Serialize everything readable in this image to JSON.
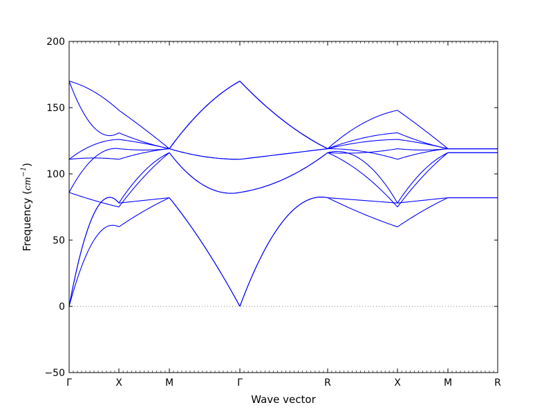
{
  "chart_data": {
    "type": "line",
    "title": "",
    "xlabel": "Wave vector",
    "ylabel": "Frequency",
    "ylabel_unit": "cm",
    "ylabel_unit_exponent": "−1",
    "ylim": [
      -50,
      200
    ],
    "yticks": [
      -50,
      0,
      50,
      100,
      150,
      200
    ],
    "ytick_labels": [
      "−50",
      "0",
      "50",
      "100",
      "150",
      "200"
    ],
    "high_symmetry_points": [
      "Γ",
      "X",
      "M",
      "Γ",
      "R",
      "X",
      "M",
      "R"
    ],
    "zero_line": true,
    "line_color": "#0000ff",
    "zero_line_color": "#808080",
    "segments": [
      {
        "from": "Γ",
        "to": "X",
        "bands": [
          [
            0,
            50,
            60
          ],
          [
            0,
            70,
            78
          ],
          [
            0,
            70,
            78
          ],
          [
            86,
            80,
            75
          ],
          [
            86,
            112,
            119
          ],
          [
            111,
            112,
            111
          ],
          [
            111,
            122,
            126
          ],
          [
            170,
            135,
            131
          ],
          [
            170,
            162,
            148
          ]
        ]
      },
      {
        "from": "X",
        "to": "M",
        "bands": [
          [
            60,
            72,
            82
          ],
          [
            78,
            80,
            82
          ],
          [
            75,
            98,
            116
          ],
          [
            78,
            102,
            116
          ],
          [
            119,
            118,
            119
          ],
          [
            111,
            116,
            119
          ],
          [
            126,
            123,
            119
          ],
          [
            131,
            124,
            119
          ],
          [
            148,
            134,
            119
          ]
        ]
      },
      {
        "from": "M",
        "to": "Γ",
        "bands": [
          [
            82,
            45,
            0
          ],
          [
            82,
            45,
            0
          ],
          [
            116,
            91,
            86
          ],
          [
            116,
            91,
            86
          ],
          [
            119,
            113,
            111
          ],
          [
            119,
            113,
            111
          ],
          [
            119,
            150,
            170
          ],
          [
            119,
            150,
            170
          ],
          [
            119,
            150,
            170
          ]
        ]
      },
      {
        "from": "Γ",
        "to": "R",
        "bands": [
          [
            0,
            65,
            82
          ],
          [
            0,
            65,
            82
          ],
          [
            86,
            96,
            116
          ],
          [
            86,
            96,
            116
          ],
          [
            111,
            115,
            119
          ],
          [
            111,
            115,
            119
          ],
          [
            170,
            140,
            119
          ],
          [
            170,
            140,
            119
          ],
          [
            170,
            140,
            119
          ]
        ]
      },
      {
        "from": "R",
        "to": "X",
        "bands": [
          [
            82,
            70,
            60
          ],
          [
            82,
            80,
            78
          ],
          [
            116,
            100,
            75
          ],
          [
            116,
            110,
            78
          ],
          [
            116,
            116,
            119
          ],
          [
            119,
            117,
            111
          ],
          [
            119,
            124,
            126
          ],
          [
            119,
            127,
            131
          ],
          [
            119,
            138,
            148
          ]
        ]
      },
      {
        "from": "X",
        "to": "M",
        "bands": [
          [
            60,
            72,
            82
          ],
          [
            78,
            80,
            82
          ],
          [
            75,
            98,
            116
          ],
          [
            78,
            102,
            116
          ],
          [
            119,
            118,
            119
          ],
          [
            111,
            116,
            119
          ],
          [
            126,
            123,
            119
          ],
          [
            131,
            124,
            119
          ],
          [
            148,
            134,
            119
          ]
        ]
      },
      {
        "from": "M",
        "to": "R",
        "bands": [
          [
            82,
            82,
            82
          ],
          [
            82,
            82,
            82
          ],
          [
            116,
            116,
            116
          ],
          [
            116,
            116,
            116
          ],
          [
            119,
            119,
            119
          ],
          [
            119,
            119,
            119
          ],
          [
            119,
            119,
            119
          ],
          [
            119,
            119,
            119
          ],
          [
            119,
            119,
            119
          ]
        ]
      }
    ]
  }
}
